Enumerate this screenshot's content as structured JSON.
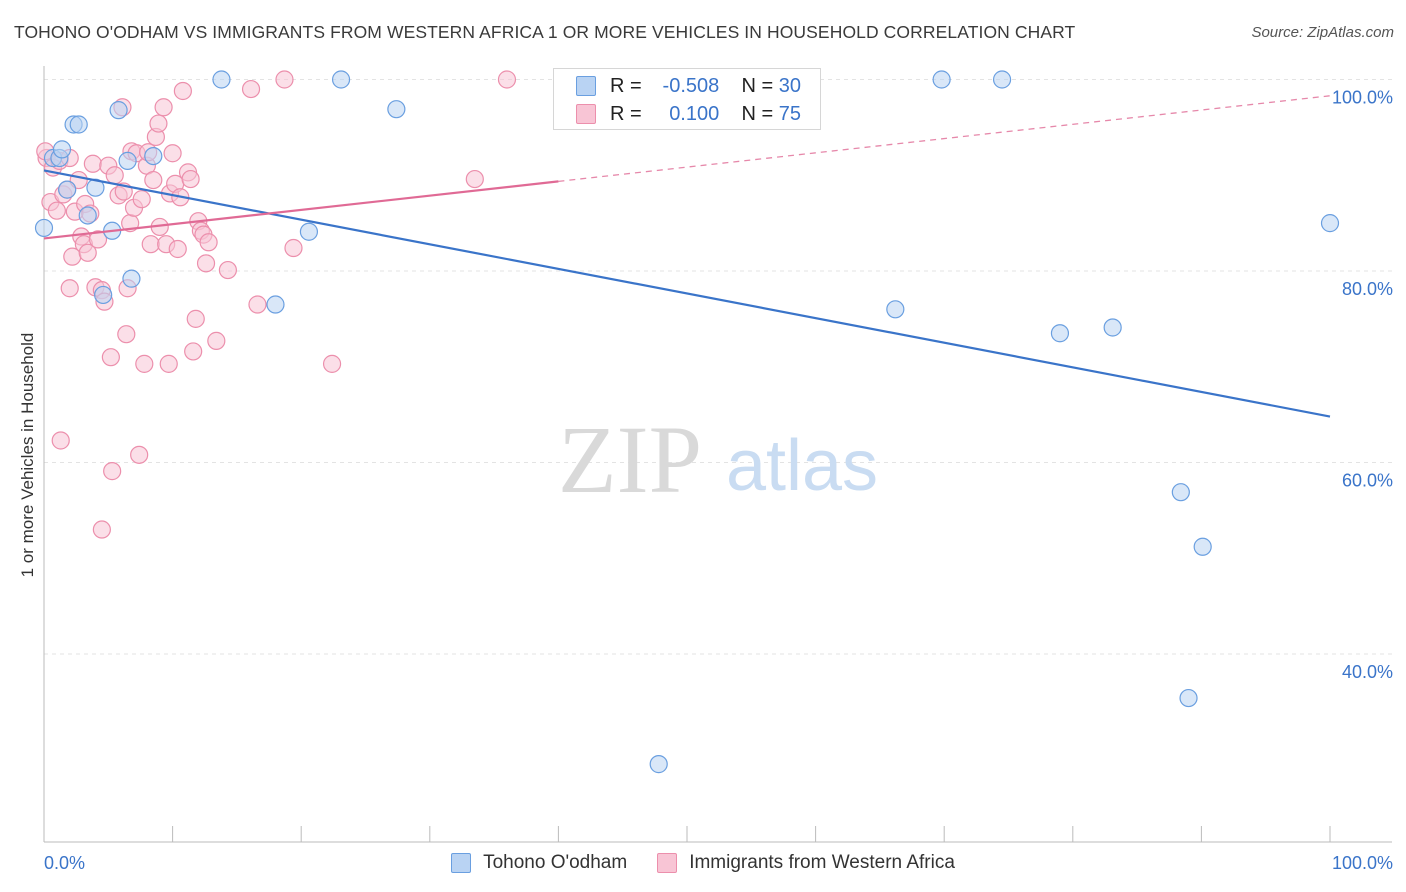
{
  "title": "TOHONO O'ODHAM VS IMMIGRANTS FROM WESTERN AFRICA 1 OR MORE VEHICLES IN HOUSEHOLD CORRELATION CHART",
  "source": "Source: ZipAtlas.com",
  "watermark": {
    "zip": "ZIP",
    "atlas": "atlas"
  },
  "legend": {
    "r_label": "R =",
    "n_label": "N =",
    "rows": [
      {
        "r": "-0.508",
        "n": "30",
        "color": "#9ec3f0",
        "border": "#6a9fe0"
      },
      {
        "r": "0.100",
        "n": "75",
        "color": "#f8bccf",
        "border": "#ec8fac"
      }
    ]
  },
  "chart_data": {
    "type": "scatter",
    "title": "TOHONO O'ODHAM VS IMMIGRANTS FROM WESTERN AFRICA 1 OR MORE VEHICLES IN HOUSEHOLD CORRELATION CHART",
    "xlabel": "",
    "ylabel": "1 or more Vehicles in Household",
    "xlim": [
      0,
      100
    ],
    "ylim": [
      20,
      102
    ],
    "x_tick_labels": [
      "0.0%",
      "100.0%"
    ],
    "y_ticks": [
      100,
      80,
      60,
      40
    ],
    "y_tick_labels": [
      "100.0%",
      "80.0%",
      "60.0%",
      "40.0%"
    ],
    "grid": true,
    "legend_position": "bottom",
    "series": [
      {
        "name": "Tohono O'odham",
        "color": "#6a9fe0",
        "fill": "#b9d3f3",
        "trend": {
          "x": [
            0,
            100
          ],
          "y": [
            90.5,
            64.8
          ],
          "dashed_from": null
        },
        "points": [
          [
            0,
            84.5
          ],
          [
            0.7,
            91.8
          ],
          [
            1.2,
            91.8
          ],
          [
            1.4,
            92.7
          ],
          [
            1.8,
            88.5
          ],
          [
            2.3,
            95.3
          ],
          [
            2.7,
            95.3
          ],
          [
            3.4,
            85.8
          ],
          [
            4.0,
            88.7
          ],
          [
            4.6,
            77.5
          ],
          [
            5.3,
            84.2
          ],
          [
            5.8,
            96.8
          ],
          [
            6.5,
            91.5
          ],
          [
            6.8,
            79.2
          ],
          [
            8.5,
            92.0
          ],
          [
            13.8,
            100.0
          ],
          [
            18.0,
            76.5
          ],
          [
            20.6,
            84.1
          ],
          [
            23.1,
            100.0
          ],
          [
            27.4,
            96.9
          ],
          [
            47.8,
            28.5
          ],
          [
            66.2,
            76.0
          ],
          [
            69.8,
            100.0
          ],
          [
            74.5,
            100.0
          ],
          [
            79.0,
            73.5
          ],
          [
            83.1,
            74.1
          ],
          [
            88.4,
            56.9
          ],
          [
            89.0,
            35.4
          ],
          [
            90.1,
            51.2
          ],
          [
            100.0,
            85.0
          ]
        ]
      },
      {
        "name": "Immigrants from Western Africa",
        "color": "#ec8fac",
        "fill": "#f8c5d5",
        "trend": {
          "x": [
            0,
            100
          ],
          "y": [
            83.4,
            98.3
          ],
          "dashed_from": 40
        },
        "points": [
          [
            0.2,
            91.8
          ],
          [
            0.5,
            87.2
          ],
          [
            0.7,
            90.8
          ],
          [
            1.0,
            86.3
          ],
          [
            1.2,
            91.5
          ],
          [
            1.3,
            62.3
          ],
          [
            1.5,
            88.0
          ],
          [
            1.8,
            88.5
          ],
          [
            2.0,
            78.2
          ],
          [
            2.0,
            91.8
          ],
          [
            2.2,
            81.5
          ],
          [
            2.4,
            86.2
          ],
          [
            2.7,
            89.5
          ],
          [
            2.9,
            83.6
          ],
          [
            3.1,
            82.8
          ],
          [
            3.2,
            87.0
          ],
          [
            3.4,
            81.9
          ],
          [
            3.6,
            86.0
          ],
          [
            3.8,
            91.2
          ],
          [
            4.0,
            78.3
          ],
          [
            4.2,
            83.3
          ],
          [
            4.5,
            78.0
          ],
          [
            4.7,
            76.8
          ],
          [
            5.0,
            91.0
          ],
          [
            5.2,
            71.0
          ],
          [
            5.3,
            59.1
          ],
          [
            5.5,
            90.0
          ],
          [
            5.8,
            87.9
          ],
          [
            6.1,
            97.1
          ],
          [
            6.2,
            88.3
          ],
          [
            6.4,
            73.4
          ],
          [
            6.5,
            78.2
          ],
          [
            6.7,
            85.0
          ],
          [
            6.8,
            92.5
          ],
          [
            7.0,
            86.6
          ],
          [
            7.2,
            92.3
          ],
          [
            7.4,
            60.8
          ],
          [
            7.6,
            87.5
          ],
          [
            7.8,
            70.3
          ],
          [
            8.0,
            91.0
          ],
          [
            8.3,
            82.8
          ],
          [
            8.5,
            89.5
          ],
          [
            8.7,
            94.0
          ],
          [
            8.9,
            95.4
          ],
          [
            9.0,
            84.6
          ],
          [
            9.3,
            97.1
          ],
          [
            9.5,
            82.8
          ],
          [
            9.7,
            70.3
          ],
          [
            9.8,
            88.1
          ],
          [
            10.0,
            92.3
          ],
          [
            10.2,
            89.1
          ],
          [
            10.4,
            82.3
          ],
          [
            10.6,
            87.7
          ],
          [
            10.8,
            98.8
          ],
          [
            11.2,
            90.3
          ],
          [
            11.4,
            89.6
          ],
          [
            11.6,
            71.6
          ],
          [
            11.8,
            75.0
          ],
          [
            12.0,
            85.2
          ],
          [
            12.2,
            84.2
          ],
          [
            12.4,
            83.8
          ],
          [
            12.6,
            80.8
          ],
          [
            12.8,
            83.0
          ],
          [
            13.4,
            72.7
          ],
          [
            14.3,
            80.1
          ],
          [
            16.1,
            99.0
          ],
          [
            16.6,
            76.5
          ],
          [
            18.7,
            100.0
          ],
          [
            19.4,
            82.4
          ],
          [
            22.4,
            70.3
          ],
          [
            33.5,
            89.6
          ],
          [
            36.0,
            100.0
          ],
          [
            4.5,
            53.0
          ],
          [
            0.1,
            92.5
          ],
          [
            8.1,
            92.4
          ]
        ]
      }
    ]
  }
}
